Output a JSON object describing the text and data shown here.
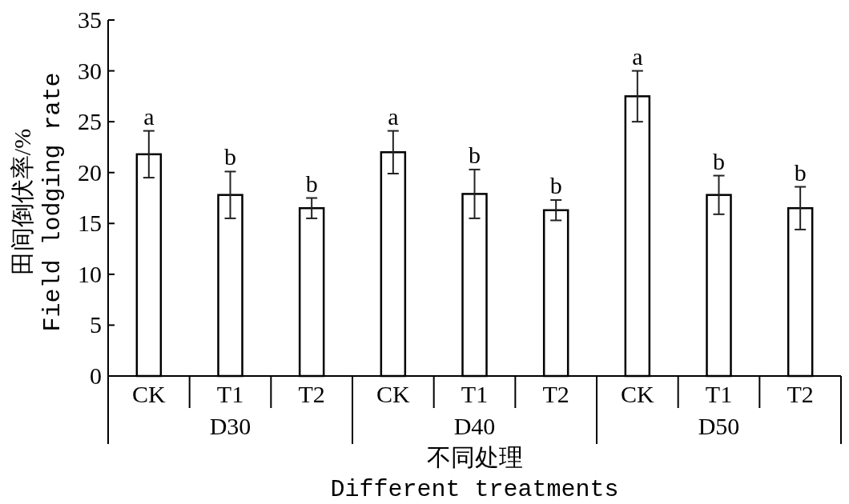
{
  "chart_data": {
    "type": "bar",
    "xlabel": "不同处理\nDifferent treatments",
    "ylabel": "田间倒伏率/%\nField lodging rate",
    "categories": [
      "CK",
      "T1",
      "T2",
      "CK",
      "T1",
      "T2",
      "CK",
      "T1",
      "T2"
    ],
    "values": [
      21.8,
      17.8,
      16.5,
      22.0,
      17.9,
      16.3,
      27.5,
      17.8,
      16.5
    ],
    "errors": [
      2.3,
      2.3,
      1.0,
      2.1,
      2.4,
      1.0,
      2.5,
      1.9,
      2.1
    ],
    "value_labels": [
      "a",
      "b",
      "b",
      "a",
      "b",
      "b",
      "a",
      "b",
      "b"
    ],
    "color": "#ffffff",
    "annotations": [
      "D30",
      "D40",
      "D50"
    ],
    "ylim": [
      0,
      35
    ],
    "yticks": [
      0,
      5,
      10,
      15,
      20,
      25,
      30,
      35
    ]
  }
}
